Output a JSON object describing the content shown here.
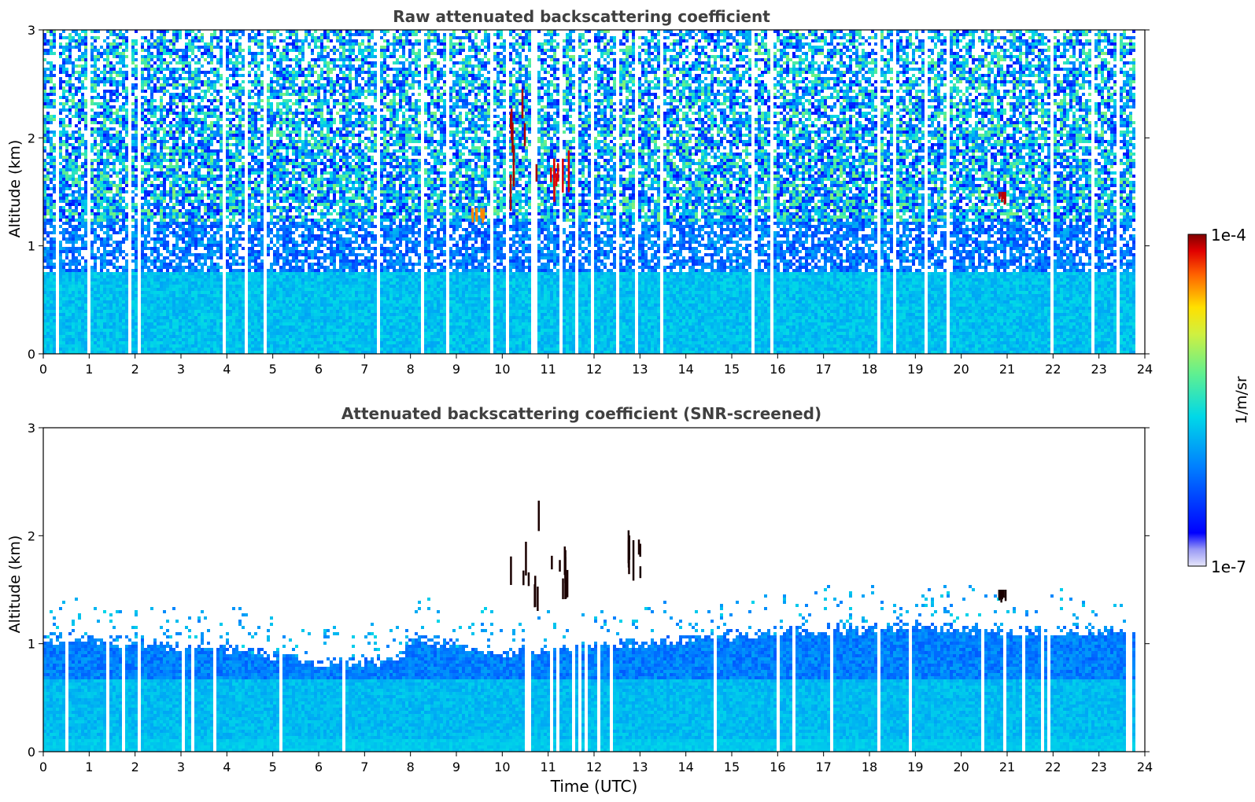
{
  "chart_data": [
    {
      "type": "heatmap",
      "title": "Raw attenuated backscattering coefficient",
      "xlabel": "",
      "ylabel": "Altitude (km)",
      "xlim": [
        0,
        24
      ],
      "ylim": [
        0,
        3
      ],
      "x_ticks": [
        "0",
        "1",
        "2",
        "3",
        "4",
        "5",
        "6",
        "7",
        "8",
        "9",
        "10",
        "11",
        "12",
        "13",
        "14",
        "15",
        "16",
        "17",
        "18",
        "19",
        "20",
        "21",
        "22",
        "23",
        "24"
      ],
      "y_ticks": [
        "0",
        "1",
        "2",
        "3"
      ],
      "data_extent_hours": [
        0,
        23.85
      ],
      "layers": [
        {
          "altitude_km": [
            0,
            0.75
          ],
          "level": 0.42,
          "description_level": "boundary layer"
        },
        {
          "altitude_km": [
            0.75,
            1.2
          ],
          "level": 0.3
        },
        {
          "altitude_km": [
            1.2,
            3.0
          ],
          "level": 0.45,
          "noise": "high"
        }
      ],
      "features": [
        {
          "time_h": [
            10.1,
            10.8
          ],
          "altitude_km": [
            1.3,
            2.8
          ],
          "level": 0.98
        },
        {
          "time_h": [
            11.0,
            11.5
          ],
          "altitude_km": [
            1.4,
            1.9
          ],
          "level": 0.95
        },
        {
          "time_h": [
            20.8,
            20.95
          ],
          "altitude_km": [
            1.38,
            1.5
          ],
          "level": 0.97
        },
        {
          "time_h": [
            9.3,
            9.6
          ],
          "altitude_km": [
            1.2,
            1.35
          ],
          "level": 0.85
        }
      ]
    },
    {
      "type": "heatmap",
      "title": "Attenuated backscattering coefficient (SNR-screened)",
      "xlabel": "Time (UTC)",
      "ylabel": "Altitude (km)",
      "xlim": [
        0,
        24
      ],
      "ylim": [
        0,
        3
      ],
      "x_ticks": [
        "0",
        "1",
        "2",
        "3",
        "4",
        "5",
        "6",
        "7",
        "8",
        "9",
        "10",
        "11",
        "12",
        "13",
        "14",
        "15",
        "16",
        "17",
        "18",
        "19",
        "20",
        "21",
        "22",
        "23",
        "24"
      ],
      "y_ticks": [
        "0",
        "1",
        "2",
        "3"
      ],
      "data_extent_hours": [
        0,
        23.85
      ],
      "boundary_layer_top_km": [
        {
          "time_h": 0,
          "top": 1.05
        },
        {
          "time_h": 4,
          "top": 0.95
        },
        {
          "time_h": 6,
          "top": 0.8
        },
        {
          "time_h": 7.8,
          "top": 0.85
        },
        {
          "time_h": 8,
          "top": 1.05
        },
        {
          "time_h": 10,
          "top": 0.9
        },
        {
          "time_h": 13,
          "top": 1.0
        },
        {
          "time_h": 16,
          "top": 1.1
        },
        {
          "time_h": 19,
          "top": 1.15
        },
        {
          "time_h": 21,
          "top": 1.1
        },
        {
          "time_h": 23.85,
          "top": 1.1
        }
      ],
      "features": [
        {
          "time_h": [
            10.1,
            10.8
          ],
          "altitude_km": [
            1.3,
            2.8
          ],
          "level": 0.99
        },
        {
          "time_h": [
            11.0,
            11.5
          ],
          "altitude_km": [
            1.4,
            1.9
          ],
          "level": 0.99
        },
        {
          "time_h": [
            20.8,
            20.95
          ],
          "altitude_km": [
            1.38,
            1.5
          ],
          "level": 0.99
        },
        {
          "time_h": [
            12.7,
            13.0
          ],
          "altitude_km": [
            1.55,
            2.05
          ],
          "level": 0.99
        }
      ]
    }
  ],
  "colorbar": {
    "label": "1/m/sr",
    "max_label": "1e-4",
    "min_label": "1e-7",
    "colormap": "jet",
    "min_color": "#e6e6fa",
    "max_color": "#800000"
  }
}
